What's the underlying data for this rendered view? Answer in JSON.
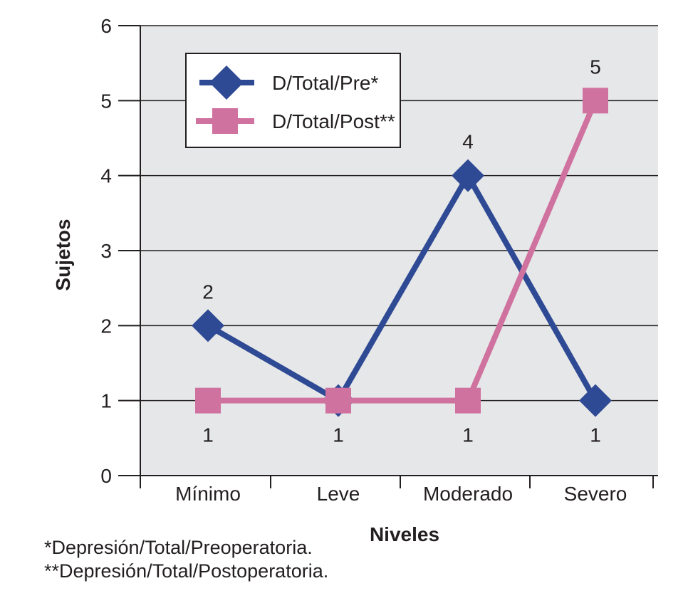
{
  "chart_data": {
    "type": "line",
    "title": "",
    "xlabel": "Niveles",
    "ylabel": "Sujetos",
    "categories": [
      "Mínimo",
      "Leve",
      "Moderado",
      "Severo"
    ],
    "ylim": [
      0,
      6
    ],
    "yticks": [
      0,
      1,
      2,
      3,
      4,
      5,
      6
    ],
    "grid": true,
    "legend_position": "top-left",
    "series": [
      {
        "name": "D/Total/Pre*",
        "values": [
          2,
          1,
          4,
          1
        ],
        "color": "#2f4a94",
        "marker": "diamond"
      },
      {
        "name": "D/Total/Post**",
        "values": [
          1,
          1,
          1,
          5
        ],
        "color": "#d0729f",
        "marker": "square"
      }
    ],
    "data_labels": [
      {
        "category": "Mínimo",
        "value": 2,
        "text": "2",
        "placement": "above"
      },
      {
        "category": "Moderado",
        "value": 4,
        "text": "4",
        "placement": "above"
      },
      {
        "category": "Severo",
        "value": 5,
        "text": "5",
        "placement": "above"
      },
      {
        "category": "Mínimo",
        "value": 1,
        "text": "1",
        "placement": "below"
      },
      {
        "category": "Leve",
        "value": 1,
        "text": "1",
        "placement": "below"
      },
      {
        "category": "Moderado",
        "value": 1,
        "text": "1",
        "placement": "below"
      },
      {
        "category": "Severo",
        "value": 1,
        "text": "1",
        "placement": "below"
      }
    ]
  },
  "colors": {
    "plot_background": "#e6e7e8",
    "gridline": "#231f20"
  },
  "footnotes": [
    "*Depresión/Total/Preoperatoria.",
    "**Depresión/Total/Postoperatoria."
  ]
}
